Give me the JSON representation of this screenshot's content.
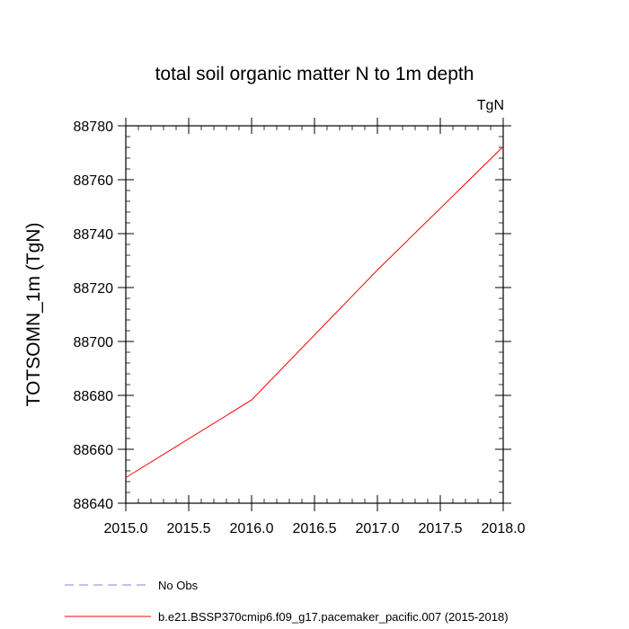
{
  "chart_data": {
    "type": "line",
    "title": "total soil organic matter N to 1m depth",
    "units_label": "TgN",
    "ylabel": "TOTSOMN_1m  (TgN)",
    "xlabel": "",
    "xlim": [
      2015.0,
      2018.0
    ],
    "ylim": [
      88640,
      88780
    ],
    "x_ticks": [
      2015.0,
      2015.5,
      2016.0,
      2016.5,
      2017.0,
      2017.5,
      2018.0
    ],
    "x_tick_labels": [
      "2015.0",
      "2015.5",
      "2016.0",
      "2016.5",
      "2017.0",
      "2017.5",
      "2018.0"
    ],
    "y_ticks": [
      88640,
      88660,
      88680,
      88700,
      88720,
      88740,
      88760,
      88780
    ],
    "y_tick_labels": [
      "88640",
      "88660",
      "88680",
      "88700",
      "88720",
      "88740",
      "88760",
      "88780"
    ],
    "grid": false,
    "legend_position": "bottom",
    "series": [
      {
        "name": "b.e21.BSSP370cmip6.f09_g17.pacemaker_pacific.007 (2015-2018)",
        "color": "#ff0000",
        "dash": "solid",
        "x": [
          2015.0,
          2016.0,
          2017.0,
          2018.0
        ],
        "y": [
          88649.5,
          88678.3,
          88726.5,
          88772.3
        ]
      }
    ],
    "legend": [
      {
        "label": "No Obs",
        "color": "#8080ff",
        "dash": "dashed"
      },
      {
        "label": "b.e21.BSSP370cmip6.f09_g17.pacemaker_pacific.007 (2015-2018)",
        "color": "#ff0000",
        "dash": "solid"
      }
    ]
  }
}
